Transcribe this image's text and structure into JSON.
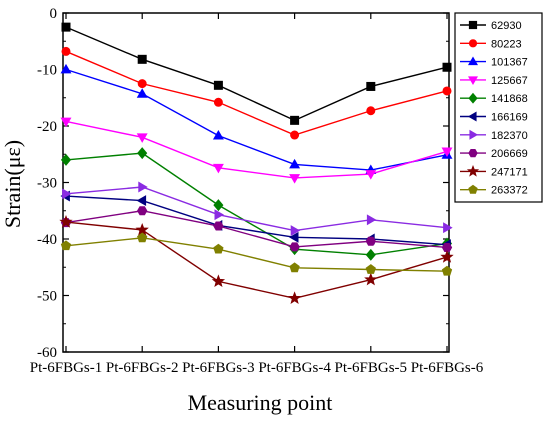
{
  "chart_data": {
    "type": "line",
    "title": "",
    "xlabel": "Measuring point",
    "ylabel": "Strain(με)",
    "categories": [
      "Pt-6FBGs-1",
      "Pt-6FBGs-2",
      "Pt-6FBGs-3",
      "Pt-6FBGs-4",
      "Pt-6FBGs-5",
      "Pt-6FBGs-6"
    ],
    "ylim": [
      -60,
      0
    ],
    "yticks": [
      0,
      -10,
      -20,
      -30,
      -40,
      -50,
      -60
    ],
    "grid": false,
    "legend_position": "right",
    "series": [
      {
        "name": "62930",
        "color": "#000000",
        "marker": "square",
        "values": [
          -2.5,
          -8.2,
          -12.8,
          -19.0,
          -13.0,
          -9.6
        ]
      },
      {
        "name": "80223",
        "color": "#ff0000",
        "marker": "circle",
        "values": [
          -6.8,
          -12.5,
          -15.8,
          -21.6,
          -17.3,
          -13.8
        ]
      },
      {
        "name": "101367",
        "color": "#0000ff",
        "marker": "triangle-up",
        "values": [
          -10.0,
          -14.3,
          -21.7,
          -26.8,
          -27.8,
          -25.1
        ]
      },
      {
        "name": "125667",
        "color": "#ff00ff",
        "marker": "triangle-down",
        "values": [
          -19.2,
          -22.0,
          -27.4,
          -29.2,
          -28.5,
          -24.5
        ]
      },
      {
        "name": "141868",
        "color": "#008000",
        "marker": "diamond",
        "values": [
          -26.0,
          -24.8,
          -34.0,
          -41.8,
          -42.8,
          -40.8
        ]
      },
      {
        "name": "166169",
        "color": "#000080",
        "marker": "triangle-left",
        "values": [
          -32.4,
          -33.2,
          -37.6,
          -39.7,
          -40.0,
          -41.0
        ]
      },
      {
        "name": "182370",
        "color": "#8a2be2",
        "marker": "triangle-right",
        "values": [
          -32.0,
          -30.8,
          -35.7,
          -38.5,
          -36.6,
          -38.0
        ]
      },
      {
        "name": "206669",
        "color": "#800080",
        "marker": "hexagon",
        "values": [
          -37.1,
          -35.0,
          -37.7,
          -41.4,
          -40.4,
          -41.5
        ]
      },
      {
        "name": "247171",
        "color": "#800000",
        "marker": "star",
        "values": [
          -37.0,
          -38.4,
          -47.5,
          -50.5,
          -47.2,
          -43.2
        ]
      },
      {
        "name": "263372",
        "color": "#808000",
        "marker": "pentagon",
        "values": [
          -41.2,
          -39.8,
          -41.8,
          -45.1,
          -45.4,
          -45.7
        ]
      }
    ]
  }
}
